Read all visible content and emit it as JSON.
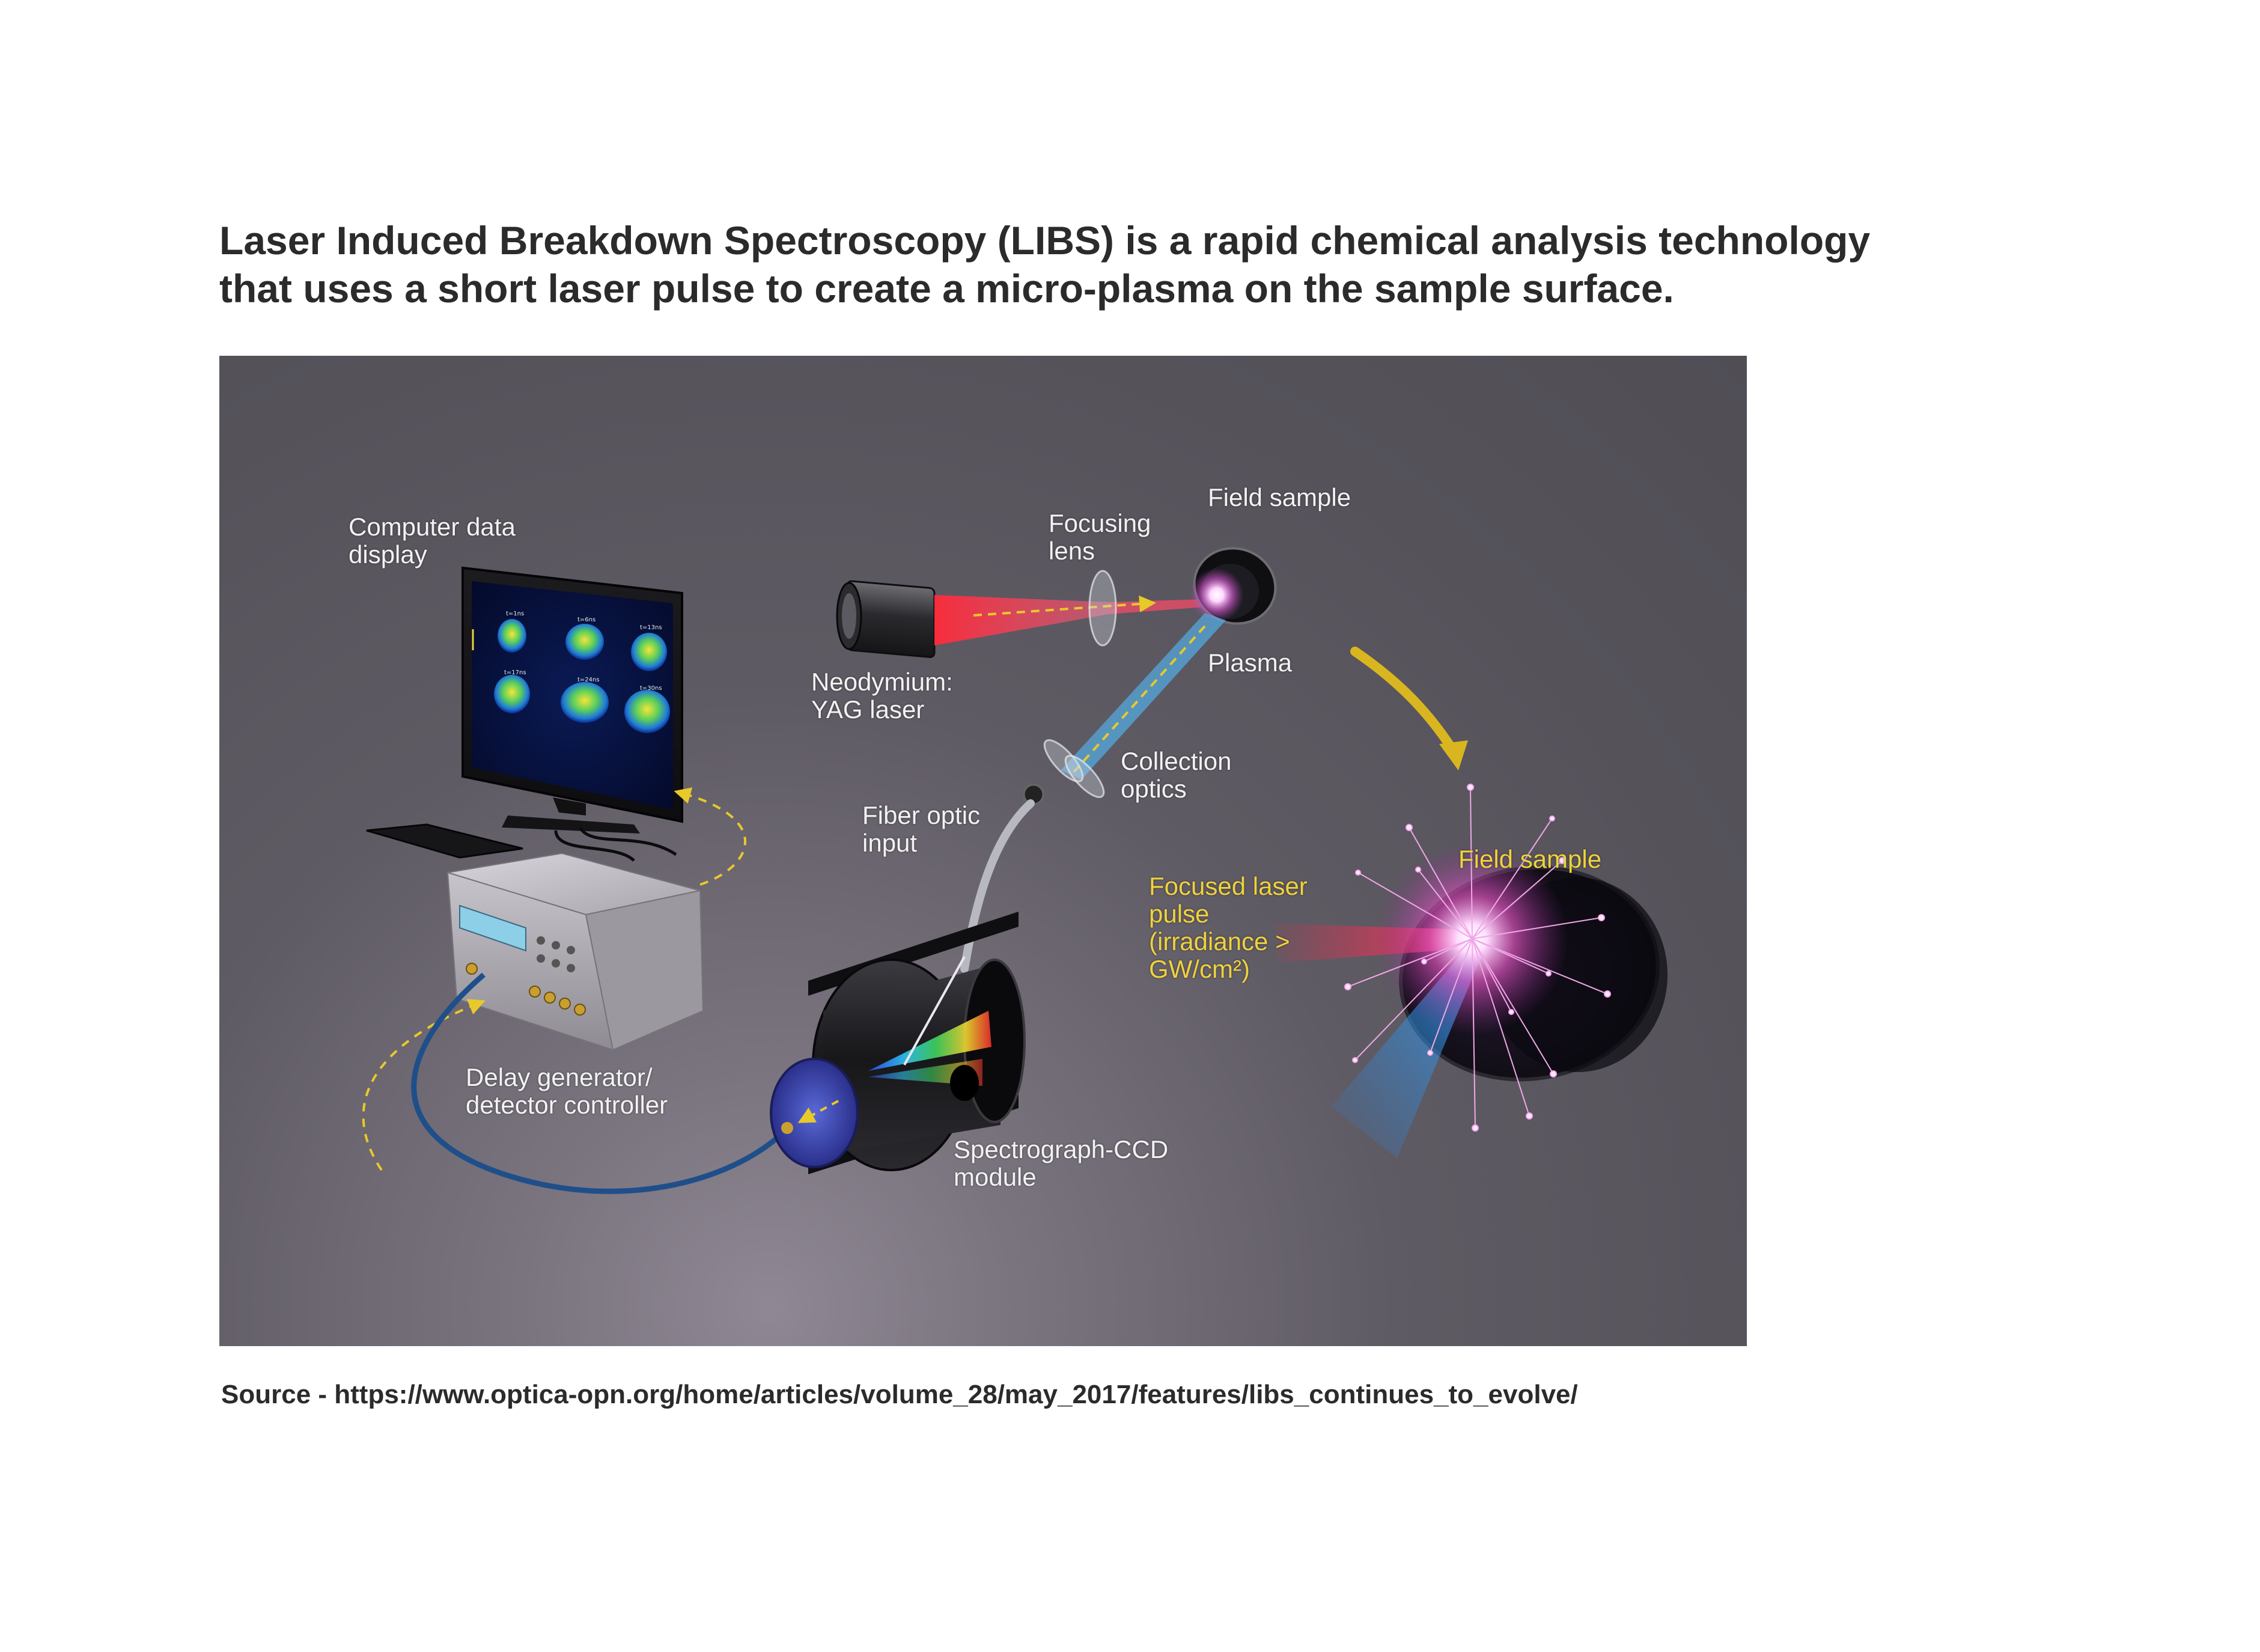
{
  "headline": {
    "line1": "Laser Induced Breakdown Spectroscopy (LIBS) is a rapid chemical analysis technology",
    "line2": "that uses a short laser pulse to create a micro-plasma on the sample surface."
  },
  "diagram": {
    "labels": {
      "computer_display": [
        "Computer data",
        "display"
      ],
      "focusing_lens": [
        "Focusing",
        "lens"
      ],
      "field_sample_top": "Field sample",
      "plasma": "Plasma",
      "nd_yag_laser": [
        "Neodymium:",
        "YAG laser"
      ],
      "collection_optics": [
        "Collection",
        "optics"
      ],
      "fiber_optic_input": [
        "Fiber optic",
        "input"
      ],
      "field_sample_inset": "Field sample",
      "focused_laser_pulse": [
        "Focused laser",
        "pulse",
        "(irradiance >",
        "GW/cm²)"
      ],
      "delay_generator": [
        "Delay generator/",
        "detector controller"
      ],
      "spectrograph": [
        "Spectrograph-CCD",
        "module"
      ]
    },
    "monitor_tick_labels": [
      "t=1ns",
      "t=6ns",
      "t=13ns",
      "t=17ns",
      "t=24ns",
      "t=30ns"
    ],
    "colors": {
      "laser_beam": "#e8283c",
      "collection_beam": "#3aa0e0",
      "arrow_yellow": "#e8c92a",
      "label_white": "#f2f2f2",
      "label_yellow": "#f0d23c",
      "background": "#5a5660"
    }
  },
  "source": "Source - https://www.optica-opn.org/home/articles/volume_28/may_2017/features/libs_continues_to_evolve/"
}
